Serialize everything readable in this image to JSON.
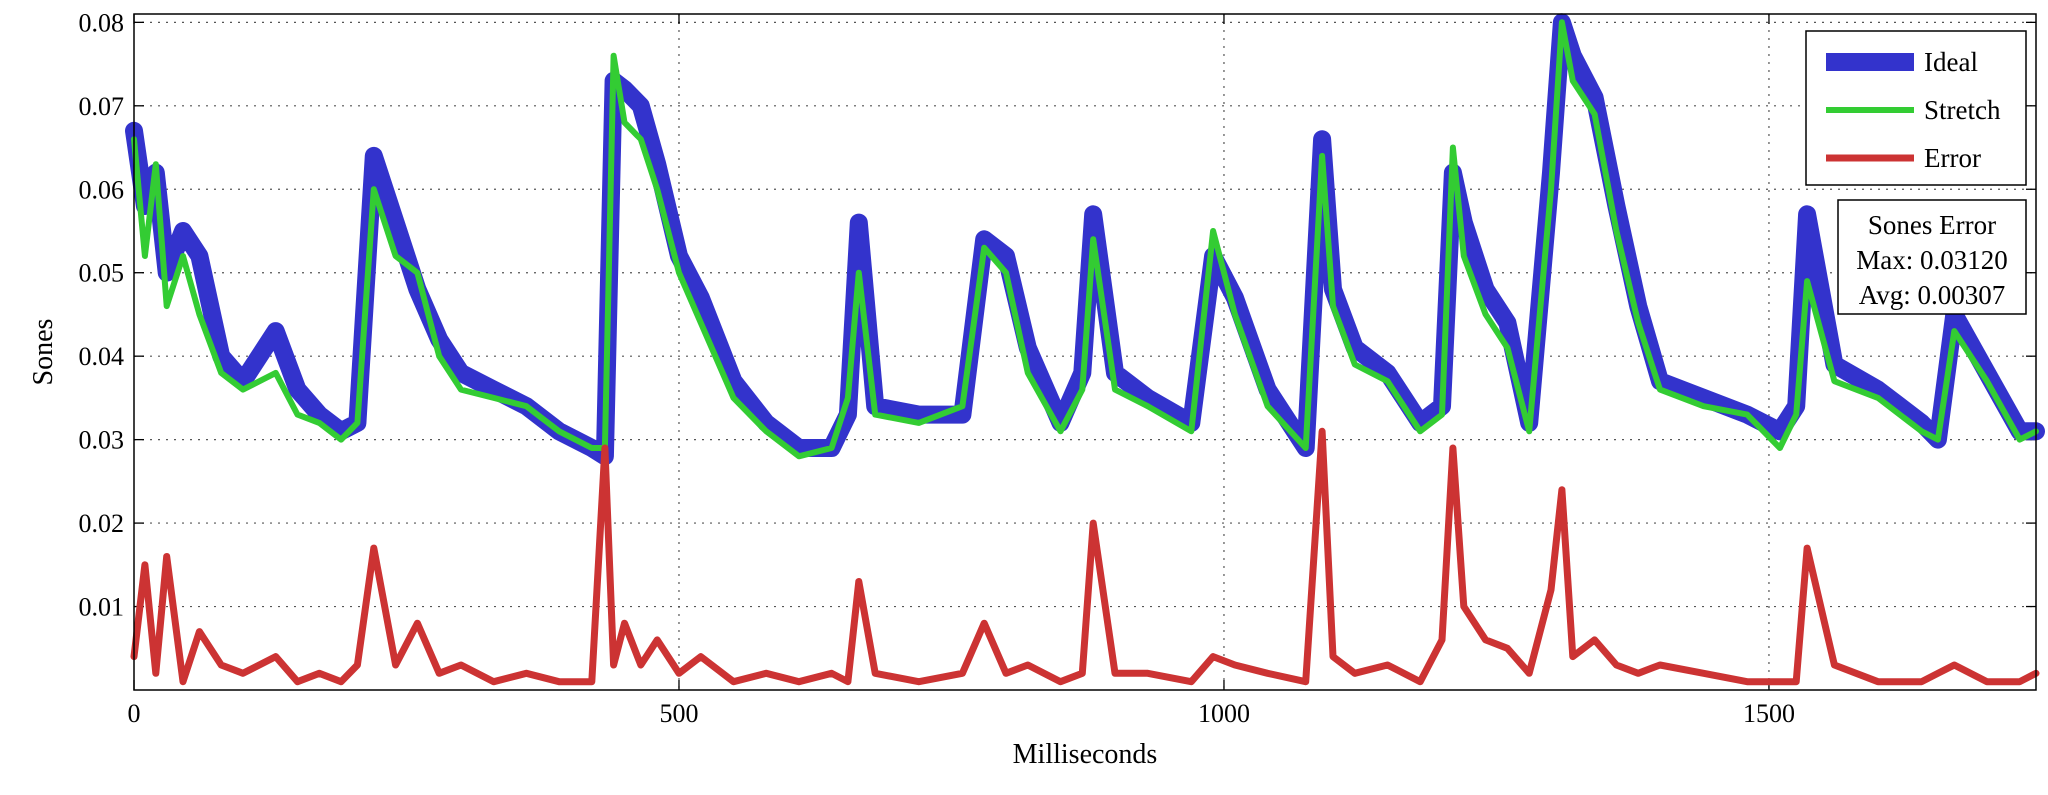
{
  "chart_data": {
    "type": "line",
    "xlabel": "Milliseconds",
    "ylabel": "Sones",
    "xlim": [
      0,
      1745
    ],
    "ylim": [
      0,
      0.081
    ],
    "xticks": [
      0,
      500,
      1000,
      1500
    ],
    "xtick_labels": [
      "0",
      "500",
      "1000",
      "1500"
    ],
    "yticks": [
      0.01,
      0.02,
      0.03,
      0.04,
      0.05,
      0.06,
      0.07,
      0.08
    ],
    "ytick_labels": [
      "0.01",
      "0.02",
      "0.03",
      "0.04",
      "0.05",
      "0.06",
      "0.07",
      "0.08"
    ],
    "grid": true,
    "legend_position": "top-right",
    "x": [
      0,
      10,
      20,
      30,
      45,
      60,
      80,
      100,
      130,
      150,
      170,
      190,
      205,
      220,
      240,
      260,
      280,
      300,
      330,
      360,
      390,
      420,
      432,
      440,
      450,
      465,
      480,
      500,
      520,
      550,
      580,
      610,
      640,
      655,
      665,
      680,
      720,
      760,
      780,
      800,
      820,
      850,
      870,
      880,
      900,
      930,
      970,
      990,
      1010,
      1040,
      1075,
      1090,
      1100,
      1120,
      1150,
      1180,
      1200,
      1210,
      1220,
      1240,
      1260,
      1280,
      1300,
      1310,
      1320,
      1340,
      1360,
      1380,
      1400,
      1440,
      1480,
      1510,
      1525,
      1535,
      1560,
      1600,
      1640,
      1655,
      1670,
      1700,
      1730,
      1745
    ],
    "series": [
      {
        "name": "Ideal",
        "color": "#3333cc",
        "values": [
          0.067,
          0.058,
          0.062,
          0.05,
          0.055,
          0.052,
          0.04,
          0.037,
          0.043,
          0.036,
          0.033,
          0.031,
          0.032,
          0.064,
          0.056,
          0.048,
          0.042,
          0.038,
          0.036,
          0.034,
          0.031,
          0.029,
          0.028,
          0.073,
          0.072,
          0.07,
          0.063,
          0.052,
          0.047,
          0.037,
          0.032,
          0.029,
          0.029,
          0.033,
          0.056,
          0.034,
          0.033,
          0.033,
          0.054,
          0.052,
          0.041,
          0.032,
          0.038,
          0.057,
          0.038,
          0.035,
          0.032,
          0.052,
          0.047,
          0.036,
          0.029,
          0.066,
          0.048,
          0.041,
          0.038,
          0.032,
          0.034,
          0.062,
          0.056,
          0.048,
          0.044,
          0.032,
          0.062,
          0.08,
          0.076,
          0.071,
          0.058,
          0.046,
          0.037,
          0.035,
          0.033,
          0.031,
          0.034,
          0.057,
          0.039,
          0.036,
          0.032,
          0.03,
          0.045,
          0.038,
          0.031,
          0.031
        ]
      },
      {
        "name": "Stretch",
        "color": "#33cc33",
        "values": [
          0.066,
          0.052,
          0.063,
          0.046,
          0.052,
          0.045,
          0.038,
          0.036,
          0.038,
          0.033,
          0.032,
          0.03,
          0.032,
          0.06,
          0.052,
          0.05,
          0.04,
          0.036,
          0.035,
          0.034,
          0.031,
          0.029,
          0.029,
          0.076,
          0.068,
          0.066,
          0.06,
          0.05,
          0.044,
          0.035,
          0.031,
          0.028,
          0.029,
          0.035,
          0.05,
          0.033,
          0.032,
          0.034,
          0.053,
          0.05,
          0.038,
          0.031,
          0.036,
          0.054,
          0.036,
          0.034,
          0.031,
          0.055,
          0.045,
          0.034,
          0.029,
          0.064,
          0.046,
          0.039,
          0.037,
          0.031,
          0.033,
          0.065,
          0.052,
          0.045,
          0.041,
          0.031,
          0.06,
          0.08,
          0.073,
          0.069,
          0.055,
          0.044,
          0.036,
          0.034,
          0.033,
          0.029,
          0.033,
          0.049,
          0.037,
          0.035,
          0.031,
          0.03,
          0.043,
          0.037,
          0.03,
          0.031
        ]
      },
      {
        "name": "Error",
        "color": "#cc3333",
        "values": [
          0.004,
          0.015,
          0.002,
          0.016,
          0.001,
          0.007,
          0.003,
          0.002,
          0.004,
          0.001,
          0.002,
          0.001,
          0.003,
          0.017,
          0.003,
          0.008,
          0.002,
          0.003,
          0.001,
          0.002,
          0.001,
          0.001,
          0.029,
          0.003,
          0.008,
          0.003,
          0.006,
          0.002,
          0.004,
          0.001,
          0.002,
          0.001,
          0.002,
          0.001,
          0.013,
          0.002,
          0.001,
          0.002,
          0.008,
          0.002,
          0.003,
          0.001,
          0.002,
          0.02,
          0.002,
          0.002,
          0.001,
          0.004,
          0.003,
          0.002,
          0.001,
          0.031,
          0.004,
          0.002,
          0.003,
          0.001,
          0.006,
          0.029,
          0.01,
          0.006,
          0.005,
          0.002,
          0.012,
          0.024,
          0.004,
          0.006,
          0.003,
          0.002,
          0.003,
          0.002,
          0.001,
          0.001,
          0.001,
          0.017,
          0.003,
          0.001,
          0.001,
          0.002,
          0.003,
          0.001,
          0.001,
          0.002
        ]
      }
    ],
    "annotation": {
      "title": "Sones Error",
      "max_label": "Max: 0.03120",
      "avg_label": "Avg: 0.00307"
    }
  }
}
